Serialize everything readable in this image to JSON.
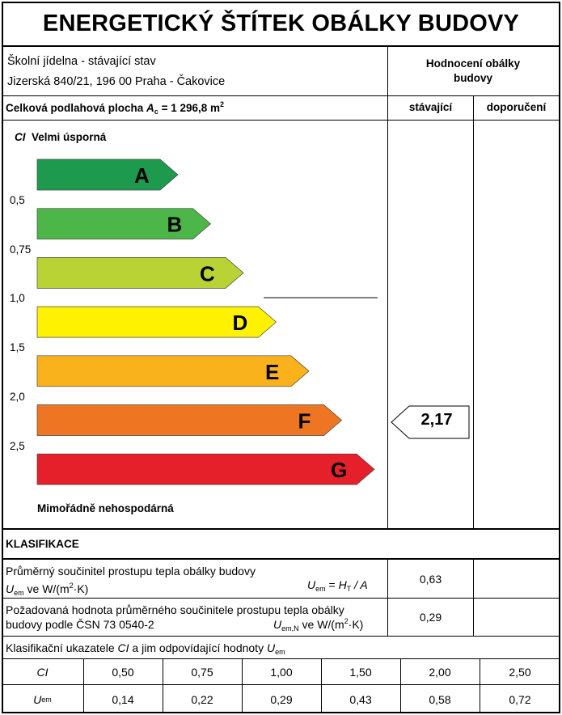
{
  "title": "ENERGETICKÝ ŠTÍTEK OBÁLKY BUDOVY",
  "building": {
    "name": "Školní jídelna - stávající stav",
    "address": "Jizerská 840/21, 196 00  Praha - Čakovice"
  },
  "rating_header": "Hodnocení obálky budovy",
  "floor_area": {
    "prefix": "Celková podlahová plocha ",
    "symbol": "A",
    "sub": "c",
    "value": " = 1 296,8 m",
    "sup": "2"
  },
  "columns": {
    "current": "stávající",
    "recommended": "doporučení"
  },
  "scale": {
    "ci_label": "CI",
    "top_label": "Velmi úsporná",
    "bottom_label": "Mimořádně nehospodárná",
    "thresholds": [
      "0,5",
      "0,75",
      "1,0",
      "1,5",
      "2,0",
      "2,5"
    ],
    "classes": [
      {
        "letter": "A",
        "color": "#1e9a4f"
      },
      {
        "letter": "B",
        "color": "#4cb748"
      },
      {
        "letter": "C",
        "color": "#b9d334"
      },
      {
        "letter": "D",
        "color": "#fff200"
      },
      {
        "letter": "E",
        "color": "#f9b21b"
      },
      {
        "letter": "F",
        "color": "#ee7623"
      },
      {
        "letter": "G",
        "color": "#e5202b"
      }
    ],
    "current_value": "2,17"
  },
  "classification": {
    "heading": "KLASIFIKACE",
    "row1": {
      "line1": "Průměrný součinitel prostupu tepla obálky budovy",
      "u_sym": "U",
      "u_sub": "em",
      "unit_text": " ve W/(m",
      "unit_sup": "2",
      "unit_end": "·K)",
      "formula_u": "U",
      "formula_u_sub": "em",
      "formula_eq": " = ",
      "formula_h": "H",
      "formula_h_sub": "T",
      "formula_rest": " / A",
      "value": "0,63",
      "recommended": ""
    },
    "row2": {
      "line1": "Požadovaná hodnota průměrného součinitele prostupu tepla obálky",
      "line2": "budovy podle ČSN 73 0540-2",
      "u_sym": "U",
      "u_sub": "em,N",
      "unit_text": " ve W/(m",
      "unit_sup": "2",
      "unit_end": "·K)",
      "value": "0,29",
      "recommended": ""
    }
  },
  "indicators": {
    "heading_text": "Klasifikační ukazatele ",
    "heading_ci": "CI",
    "heading_mid": " a jim odpovídající hodnoty ",
    "heading_u": "U",
    "heading_u_sub": "em",
    "row_ci_label": "CI",
    "row_u_label": "U",
    "row_u_sub": "em",
    "ci_values": [
      "0,50",
      "0,75",
      "1,00",
      "1,50",
      "2,00",
      "2,50"
    ],
    "u_values": [
      "0,14",
      "0,22",
      "0,29",
      "0,43",
      "0,58",
      "0,72"
    ]
  }
}
